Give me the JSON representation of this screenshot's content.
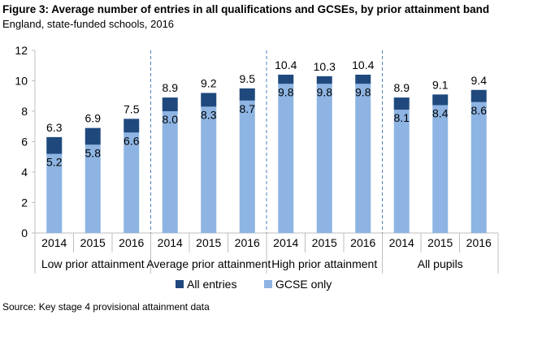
{
  "chart_data": {
    "type": "bar",
    "stacked": true,
    "title": "Figure 3: Average number of entries in all qualifications and GCSEs, by prior attainment band",
    "subtitle": "England, state-funded schools, 2016",
    "source": "Source: Key stage 4 provisional attainment data",
    "ylim": [
      0,
      12
    ],
    "yticks": [
      "0",
      "2",
      "4",
      "6",
      "8",
      "10",
      "12"
    ],
    "groups": [
      {
        "label": "Low prior attainment",
        "categories": [
          "2014",
          "2015",
          "2016"
        ],
        "all_entries": [
          6.3,
          6.9,
          7.5
        ],
        "gcse_only": [
          5.2,
          5.8,
          6.6
        ]
      },
      {
        "label": "Average prior attainment",
        "categories": [
          "2014",
          "2015",
          "2016"
        ],
        "all_entries": [
          8.9,
          9.2,
          9.5
        ],
        "gcse_only": [
          8.0,
          8.3,
          8.7
        ]
      },
      {
        "label": "High prior attainment",
        "categories": [
          "2014",
          "2015",
          "2016"
        ],
        "all_entries": [
          10.4,
          10.3,
          10.4
        ],
        "gcse_only": [
          9.8,
          9.8,
          9.8
        ]
      },
      {
        "label": "All pupils",
        "categories": [
          "2014",
          "2015",
          "2016"
        ],
        "all_entries": [
          8.9,
          9.1,
          9.4
        ],
        "gcse_only": [
          8.1,
          8.4,
          8.6
        ]
      }
    ],
    "legend": [
      {
        "name": "All entries",
        "color": "#1f497d"
      },
      {
        "name": "GCSE only",
        "color": "#8db4e2"
      }
    ],
    "legend_position": "bottom"
  }
}
